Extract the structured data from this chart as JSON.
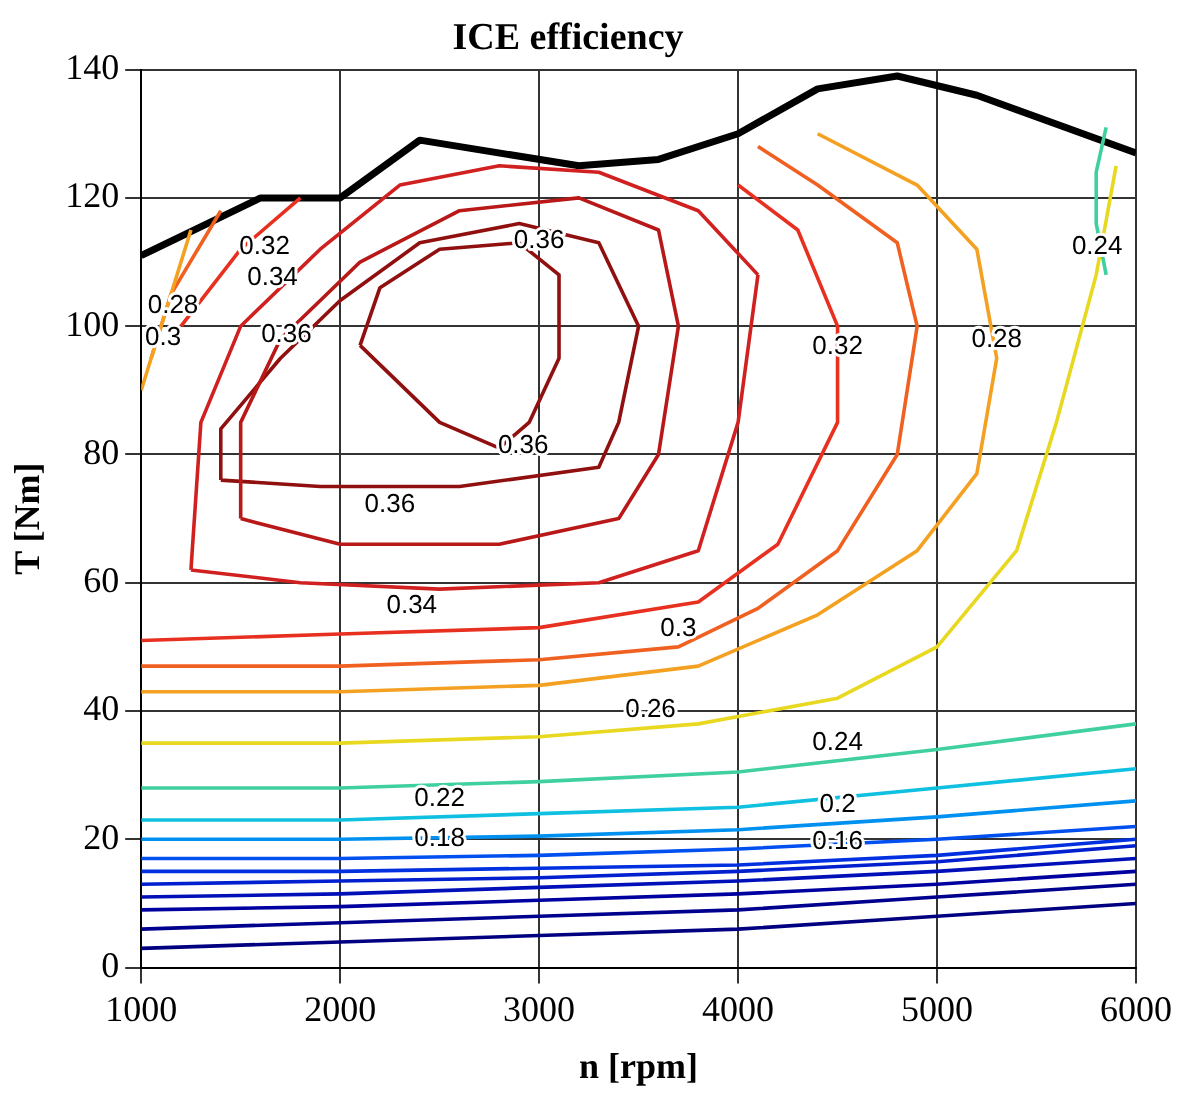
{
  "chart_data": {
    "type": "line",
    "title": "ICE efficiency",
    "xlabel": "n [rpm]",
    "ylabel": "T [Nm]",
    "xlim": [
      1000,
      6000
    ],
    "ylim": [
      0,
      140
    ],
    "xticks": [
      1000,
      2000,
      3000,
      4000,
      5000,
      6000
    ],
    "yticks": [
      0,
      20,
      40,
      60,
      80,
      100,
      120,
      140
    ],
    "grid": true,
    "legend": false,
    "marker": "none",
    "line_style": "solid",
    "series": [
      {
        "color": "#000080",
        "x": [
          1000,
          2000,
          3000,
          4000,
          5000,
          6000
        ],
        "values": [
          3,
          4,
          5,
          6,
          8,
          10
        ]
      },
      {
        "color": "#00008f",
        "x": [
          1000,
          2000,
          3000,
          4000,
          5000,
          6000
        ],
        "values": [
          6,
          7,
          8,
          9,
          11,
          13
        ]
      },
      {
        "color": "#0000a0",
        "x": [
          1000,
          2000,
          3000,
          4000,
          5000,
          6000
        ],
        "values": [
          9,
          9.5,
          10.5,
          11.5,
          13,
          15
        ]
      },
      {
        "color": "#0010b8",
        "x": [
          1000,
          2000,
          3000,
          4000,
          5000,
          6000
        ],
        "values": [
          11,
          11.5,
          12.5,
          13.5,
          15,
          17
        ]
      },
      {
        "color": "#0020d0",
        "x": [
          1000,
          2000,
          3000,
          4000,
          5000,
          6000
        ],
        "values": [
          13,
          13.5,
          14,
          15,
          16.5,
          19
        ]
      },
      {
        "name": "0.16",
        "color": "#0030e0",
        "x": [
          1000,
          2000,
          3000,
          4000,
          5000,
          6000
        ],
        "values": [
          15,
          15,
          15.5,
          16,
          17.5,
          20
        ]
      },
      {
        "name": "0.18",
        "color": "#0050f0",
        "x": [
          1000,
          2000,
          3000,
          4000,
          5000,
          6000
        ],
        "values": [
          17,
          17,
          17.5,
          18.5,
          20,
          22
        ]
      },
      {
        "name": "0.2",
        "color": "#0090f0",
        "x": [
          1000,
          2000,
          3000,
          4000,
          5000,
          6000
        ],
        "values": [
          20,
          20,
          20.5,
          21.5,
          23.5,
          26
        ]
      },
      {
        "name": "0.22",
        "color": "#10c0e0",
        "x": [
          1000,
          2000,
          3000,
          4000,
          5000,
          6000
        ],
        "values": [
          23,
          23,
          24,
          25,
          28,
          31
        ]
      },
      {
        "name": "0.24",
        "color": "#40d0a0",
        "x": [
          1000,
          2000,
          3000,
          4000,
          5000,
          6000,
          null,
          5850,
          5800,
          5800,
          5850
        ],
        "values": [
          28,
          28,
          29,
          30.5,
          34,
          38,
          null,
          131,
          124,
          116,
          108
        ]
      },
      {
        "name": "0.26",
        "color": "#e8d820",
        "x": [
          1000,
          2000,
          3000,
          3800,
          4500,
          5000,
          5400,
          5600,
          5800,
          5900
        ],
        "values": [
          35,
          35,
          36,
          38,
          42,
          50,
          65,
          85,
          108,
          125
        ]
      },
      {
        "name": "0.28",
        "color": "#f4a020",
        "x": [
          1000,
          2000,
          3000,
          3800,
          4400,
          4900,
          5200,
          5300,
          5200,
          4900,
          4400,
          null,
          1000,
          1100,
          1250
        ],
        "values": [
          43,
          43,
          44,
          47,
          55,
          65,
          77,
          95,
          112,
          122,
          130,
          null,
          90,
          100,
          115
        ]
      },
      {
        "name": "0.3",
        "color": "#f06020",
        "x": [
          1000,
          2000,
          3000,
          3700,
          4100,
          4500,
          4800,
          4900,
          4800,
          4400,
          4100,
          null,
          1050,
          1150,
          1400
        ],
        "values": [
          47,
          47,
          48,
          50,
          56,
          65,
          80,
          100,
          113,
          122,
          128,
          null,
          95,
          105,
          118
        ]
      },
      {
        "name": "0.32",
        "color": "#e83020",
        "x": [
          1000,
          2000,
          3000,
          3800,
          4200,
          4500,
          4500,
          4300,
          4000,
          null,
          1200,
          1500,
          1800
        ],
        "values": [
          51,
          52,
          53,
          57,
          66,
          85,
          100,
          115,
          122,
          null,
          100,
          112,
          120
        ]
      },
      {
        "name": "0.34",
        "color": "#d02020",
        "x": [
          1250,
          1300,
          1500,
          1900,
          2300,
          2800,
          3300,
          3800,
          4100,
          null,
          1250,
          1800,
          2500,
          3300,
          3800,
          4000,
          4100
        ],
        "values": [
          62,
          85,
          100,
          112,
          122,
          125,
          124,
          118,
          108,
          null,
          62,
          60,
          59,
          60,
          65,
          85,
          108
        ]
      },
      {
        "color": "#b81818",
        "x": [
          1500,
          1500,
          1700,
          2100,
          2600,
          3200,
          3600,
          3700,
          null,
          1500,
          2000,
          2800,
          3400,
          3600,
          3700
        ],
        "values": [
          70,
          85,
          98,
          110,
          118,
          120,
          115,
          100,
          null,
          70,
          66,
          66,
          70,
          80,
          100
        ]
      },
      {
        "name": "0.36",
        "color": "#901010",
        "x": [
          1400,
          1400,
          1700,
          2000,
          2400,
          2900,
          3300,
          3500,
          null,
          1400,
          1900,
          2600,
          3300,
          3400,
          3500
        ],
        "values": [
          76,
          84,
          95,
          104,
          113,
          116,
          113,
          100,
          null,
          76,
          75,
          75,
          78,
          85,
          100
        ]
      },
      {
        "name": "0.36",
        "color": "#901010",
        "x": [
          2100,
          2200,
          2500,
          2900,
          3100,
          3100,
          null,
          2100,
          2500,
          2800,
          2950,
          3100
        ],
        "values": [
          97,
          106,
          112,
          113,
          108,
          95,
          null,
          97,
          85,
          81,
          85,
          95
        ]
      },
      {
        "color": "#000000",
        "x": [
          1000,
          1600,
          2000,
          2400,
          3200,
          3600,
          4000,
          4400,
          4800,
          5200,
          6000
        ],
        "values": [
          111,
          120,
          120,
          129,
          125,
          126,
          130,
          137,
          139,
          136,
          127
        ]
      }
    ]
  }
}
